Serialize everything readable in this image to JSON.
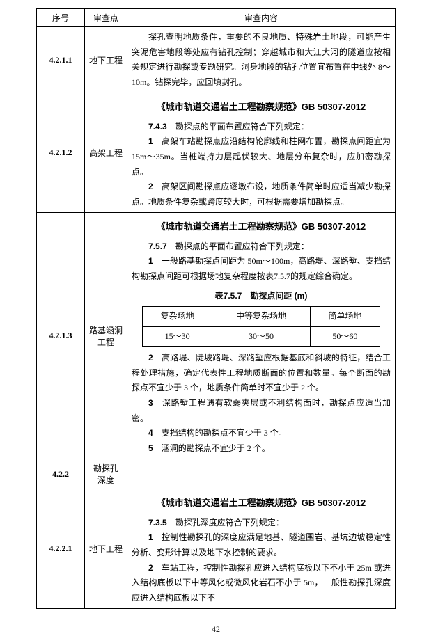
{
  "header": {
    "col1": "序号",
    "col2": "审查点",
    "col3": "审查内容"
  },
  "rows": [
    {
      "no": "4.2.1.1",
      "pt": "地下工程",
      "content_lines": [
        "探孔查明地质条件，重要的不良地质、特殊岩土地段，可能产生突泥危害地段等处应有钻孔控制；穿越城市和大江大河的隧道应按相关规定进行勘探或专题研究。洞身地段的钻孔位置宜布置在中线外 8～10m。钻探完毕，应回填封孔。"
      ]
    },
    {
      "no": "4.2.1.2",
      "pt": "高架工程",
      "std_title": "《城市轨道交通岩土工程勘察规范》GB 50307-2012",
      "clause_no": "7.4.3",
      "clause_text": "勘探点的平面布置应符合下列规定：",
      "items": [
        {
          "n": "1",
          "t": "高架车站勘探点应沿结构轮廓线和柱网布置，勘探点间距宜为 15m～35m。当桩端持力层起伏较大、地层分布复杂时，应加密勘探点。"
        },
        {
          "n": "2",
          "t": "高架区间勘探点应逐墩布设，地质条件简单时应适当减少勘探点。地质条件复杂或跨度较大时，可根据需要增加勘探点。"
        }
      ]
    },
    {
      "no": "4.2.1.3",
      "pt": "路基涵洞工程",
      "std_title": "《城市轨道交通岩土工程勘察规范》GB 50307-2012",
      "clause_no": "7.5.7",
      "clause_text": "勘探点的平面布置应符合下列规定：",
      "pre_table_item": {
        "n": "1",
        "t": "一般路基勘探点间距为 50m～100m，高路堤、深路堑、支挡结构勘探点间距可根据场地复杂程度按表7.5.7的规定综合确定。"
      },
      "table_caption": "表7.5.7　勘探点间距 (m)",
      "inner_table": {
        "headers": [
          "复杂场地",
          "中等复杂场地",
          "简单场地"
        ],
        "row": [
          "15～30",
          "30～50",
          "50～60"
        ]
      },
      "post_items": [
        {
          "n": "2",
          "t": "高路堤、陡坡路堤、深路堑应根据基底和斜坡的特征，结合工程处理措施，确定代表性工程地质断面的位置和数量。每个断面的勘探点不宜少于 3 个，地质条件简单时不宜少于 2 个。"
        },
        {
          "n": "3",
          "t": "深路堑工程遇有软弱夹层或不利结构面时，勘探点应适当加密。"
        },
        {
          "n": "4",
          "t": "支挡结构的勘探点不宜少于 3 个。"
        },
        {
          "n": "5",
          "t": "涵洞的勘探点不宜少于 2 个。"
        }
      ]
    },
    {
      "no": "4.2.2",
      "pt": "勘探孔深度",
      "content_lines": []
    },
    {
      "no": "4.2.2.1",
      "pt": "地下工程",
      "std_title": "《城市轨道交通岩土工程勘察规范》GB 50307-2012",
      "clause_no": "7.3.5",
      "clause_text": "勘探孔深度应符合下列规定：",
      "items": [
        {
          "n": "1",
          "t": "控制性勘探孔的深度应满足地基、隧道围岩、基坑边坡稳定性分析、变形计算以及地下水控制的要求。"
        },
        {
          "n": "2",
          "t": "车站工程，控制性勘探孔应进入结构底板以下不小于 25m 或进入结构底板以下中等风化或微风化岩石不小于 5m，一般性勘探孔深度应进入结构底板以下不"
        }
      ]
    }
  ],
  "page_number": "42"
}
